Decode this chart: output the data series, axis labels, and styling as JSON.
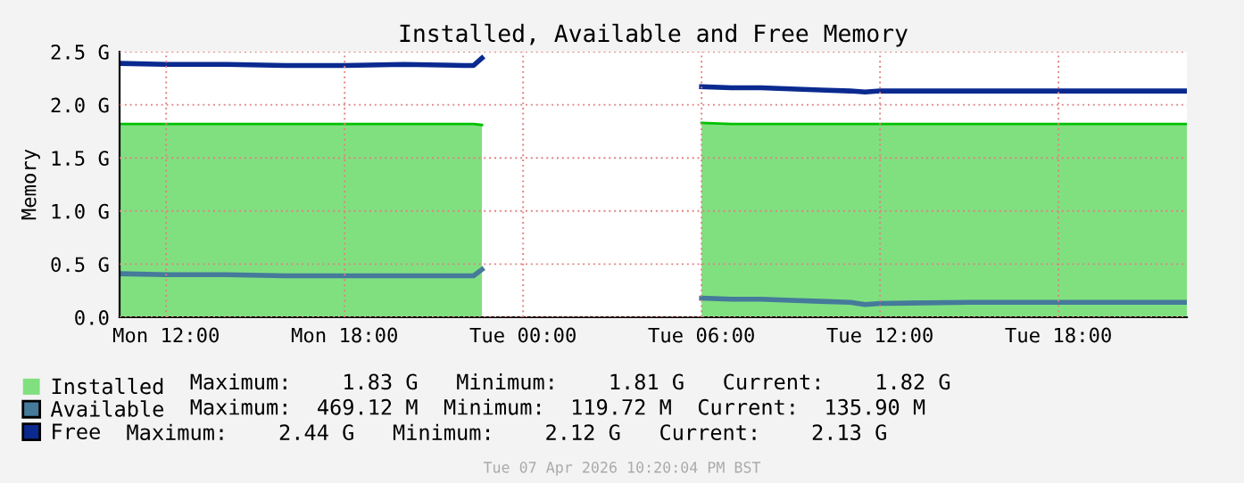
{
  "chart_data": {
    "type": "line",
    "title": "Installed, Available and Free Memory",
    "ylabel": "Memory",
    "x": [
      "2026-04-06T10:26",
      "2026-04-06T12:00",
      "2026-04-06T14:00",
      "2026-04-06T16:00",
      "2026-04-06T18:00",
      "2026-04-06T20:00",
      "2026-04-06T22:00",
      "2026-04-06T22:20",
      "2026-04-06T22:37",
      "2026-04-07T00:00",
      "2026-04-07T06:00",
      "2026-04-07T07:00",
      "2026-04-07T08:00",
      "2026-04-07T09:00",
      "2026-04-07T10:00",
      "2026-04-07T11:00",
      "2026-04-07T11:30",
      "2026-04-07T12:00",
      "2026-04-07T15:00",
      "2026-04-07T18:00",
      "2026-04-07T20:00",
      "2026-04-07T22:19"
    ],
    "series": [
      {
        "name": "Installed",
        "type": "area",
        "color": "#80e080",
        "values": [
          1.82,
          1.82,
          1.82,
          1.82,
          1.82,
          1.82,
          1.82,
          1.82,
          1.81,
          null,
          1.83,
          1.82,
          1.82,
          1.82,
          1.82,
          1.82,
          1.82,
          1.82,
          1.82,
          1.82,
          1.82,
          1.82
        ]
      },
      {
        "name": "Available",
        "color": "#457a9a",
        "values": [
          0.41,
          0.4,
          0.4,
          0.39,
          0.39,
          0.39,
          0.39,
          0.39,
          0.45,
          null,
          0.18,
          0.17,
          0.17,
          0.16,
          0.15,
          0.14,
          0.12,
          0.13,
          0.14,
          0.14,
          0.14,
          0.14
        ]
      },
      {
        "name": "Free",
        "color": "#0a2a90",
        "values": [
          2.39,
          2.38,
          2.38,
          2.37,
          2.37,
          2.38,
          2.37,
          2.37,
          2.44,
          null,
          2.17,
          2.16,
          2.16,
          2.15,
          2.14,
          2.13,
          2.12,
          2.13,
          2.13,
          2.13,
          2.13,
          2.13
        ]
      }
    ],
    "annotations": [
      "Maximum:    1.83 G   Minimum:    1.81 G   Current:    1.82 G",
      "Maximum:  469.12 M  Minimum:  119.72 M  Current:  135.90 M",
      "Maximum:    2.44 G   Minimum:    2.12 G   Current:    2.13 G",
      "Tue 07 Apr 2026 10:20:04 PM BST"
    ],
    "xlim": [
      "2026-04-06T10:26",
      "2026-04-07T22:19"
    ],
    "xticks": [
      {
        "value": "2026-04-06T12:00",
        "label": "Mon 12:00"
      },
      {
        "value": "2026-04-06T18:00",
        "label": "Mon 18:00"
      },
      {
        "value": "2026-04-07T00:00",
        "label": "Tue 00:00"
      },
      {
        "value": "2026-04-07T06:00",
        "label": "Tue 06:00"
      },
      {
        "value": "2026-04-07T12:00",
        "label": "Tue 12:00"
      },
      {
        "value": "2026-04-07T18:00",
        "label": "Tue 18:00"
      }
    ],
    "ylim": [
      0,
      2.5
    ],
    "yticks": [
      {
        "value": 0,
        "label": "0.0"
      },
      {
        "value": 0.5,
        "label": "0.5 G"
      },
      {
        "value": 1.0,
        "label": "1.0 G"
      },
      {
        "value": 1.5,
        "label": "1.5 G"
      },
      {
        "value": 2.0,
        "label": "2.0 G"
      },
      {
        "value": 2.5,
        "label": "2.5 G"
      }
    ],
    "grid": true,
    "legend": "bottom"
  }
}
